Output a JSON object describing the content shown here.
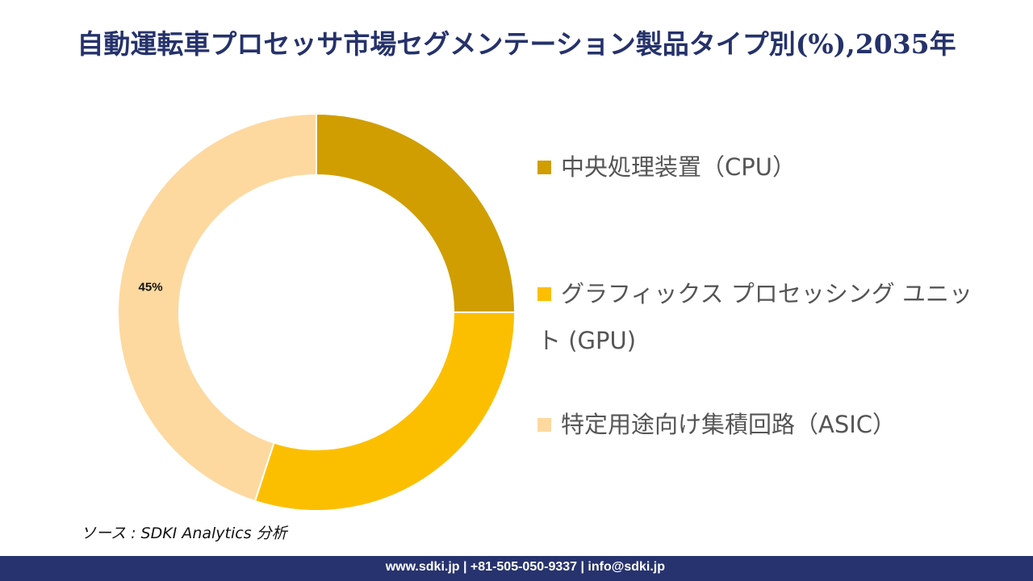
{
  "title": "自動運転車プロセッサ市場セグメンテーション製品タイプ別(%),2035年",
  "chart_data": {
    "type": "pie",
    "style": "donut",
    "categories": [
      "中央処理装置（CPU）",
      "グラフィックス プロセッシング ユニット (GPU)",
      "特定用途向け集積回路（ASIC）"
    ],
    "values": [
      25,
      30,
      45
    ],
    "colors": [
      "#d09e00",
      "#fcbf00",
      "#fdd9a0"
    ],
    "data_labels": [
      "",
      "",
      "45%"
    ],
    "legend_position": "right"
  },
  "source": "ソース : SDKI Analytics 分析",
  "footer": "www.sdki.jp | +81-505-050-9337 | info@sdki.jp"
}
